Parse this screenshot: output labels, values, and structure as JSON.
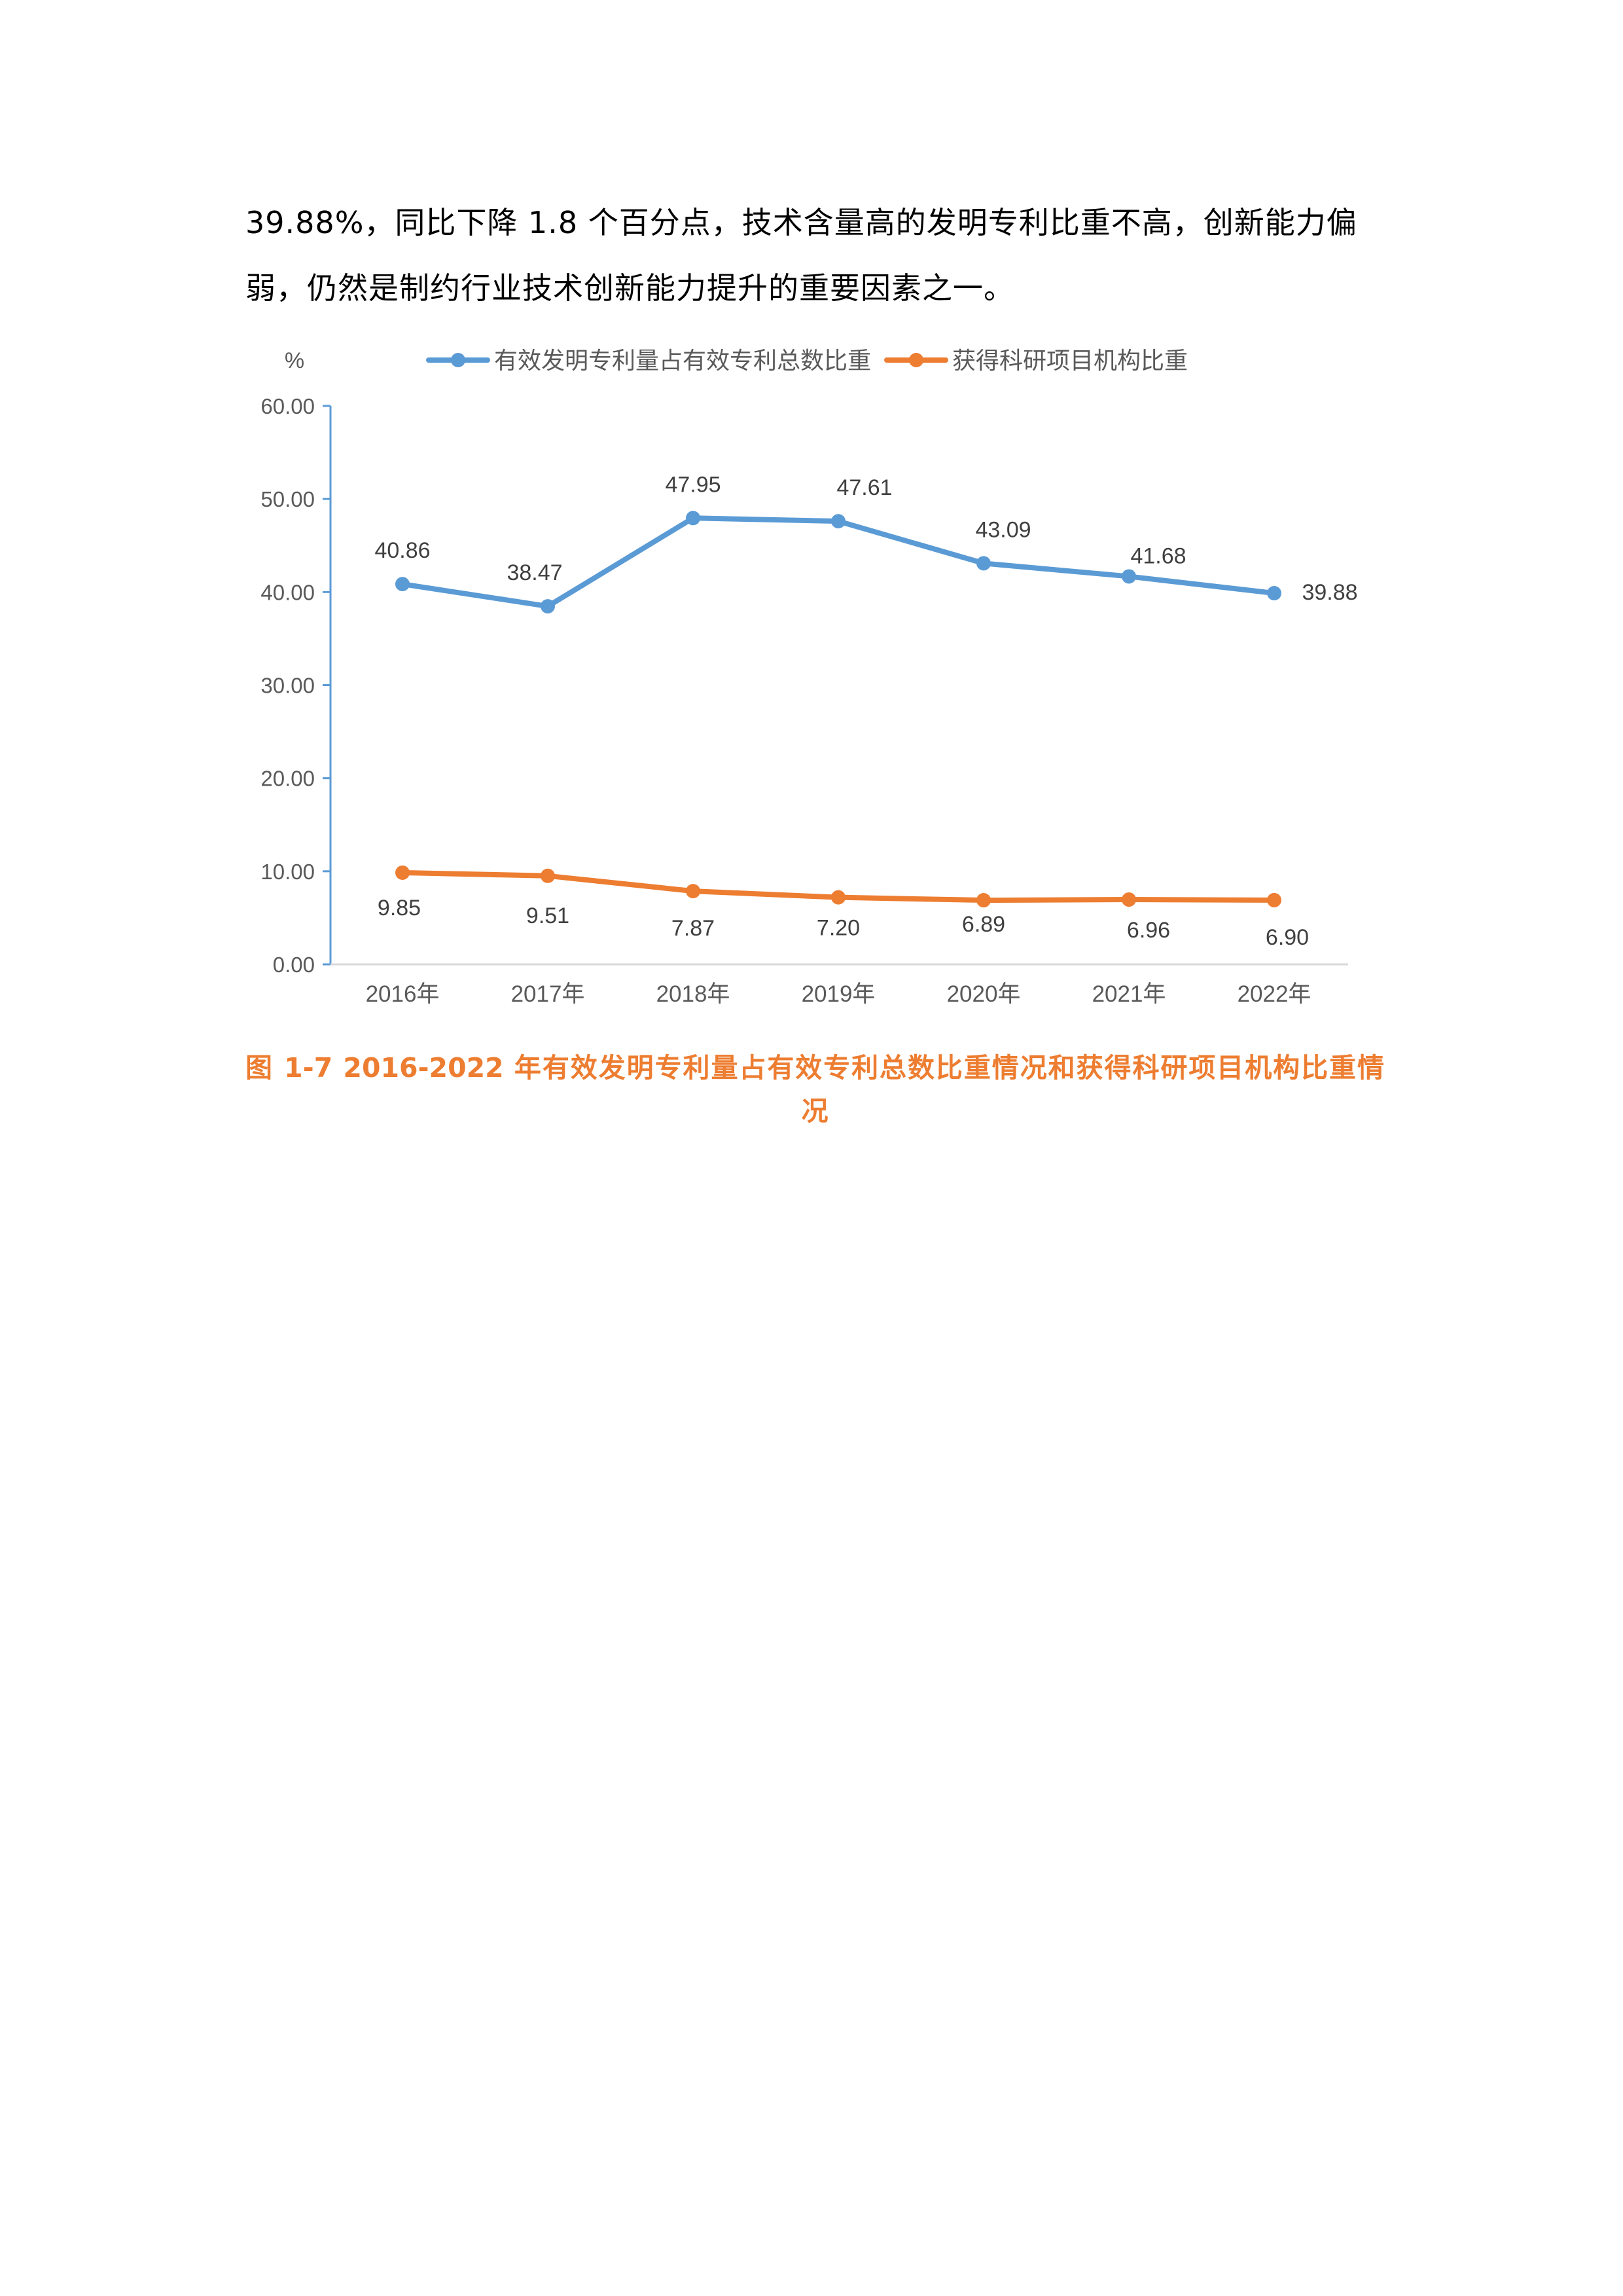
{
  "document": {
    "paragraph_lines": [
      "39.88%，同比下降 1.8 个百分点，技术含量高的发明专利比重不高，创新能力偏",
      "弱，仍然是制约行业技术创新能力提升的重要因素之一。"
    ],
    "caption_lines": [
      "图 1-7    2016-2022 年有效发明专利量占有效专利总数比重情况和获得科研项目机构比重情",
      "况"
    ]
  },
  "chart_data": {
    "type": "line",
    "unit_label": "%",
    "categories": [
      "2016年",
      "2017年",
      "2018年",
      "2019年",
      "2020年",
      "2021年",
      "2022年"
    ],
    "ylim": [
      0,
      60
    ],
    "yticks": [
      "0.00",
      "10.00",
      "20.00",
      "30.00",
      "40.00",
      "50.00",
      "60.00"
    ],
    "grid": false,
    "legend_position": "top",
    "series": [
      {
        "name": "有效发明专利量占有效专利总数比重",
        "color": "#5b9bd5",
        "values": [
          40.86,
          38.47,
          47.95,
          47.61,
          43.09,
          41.68,
          39.88
        ],
        "labels": [
          "40.86",
          "38.47",
          "47.95",
          "47.61",
          "43.09",
          "41.68",
          "39.88"
        ]
      },
      {
        "name": "获得科研项目机构比重",
        "color": "#ed7d31",
        "values": [
          9.85,
          9.51,
          7.87,
          7.2,
          6.89,
          6.96,
          6.9
        ],
        "labels": [
          "9.85",
          "9.51",
          "7.87",
          "7.20",
          "6.89",
          "6.96",
          "6.90"
        ]
      }
    ]
  }
}
